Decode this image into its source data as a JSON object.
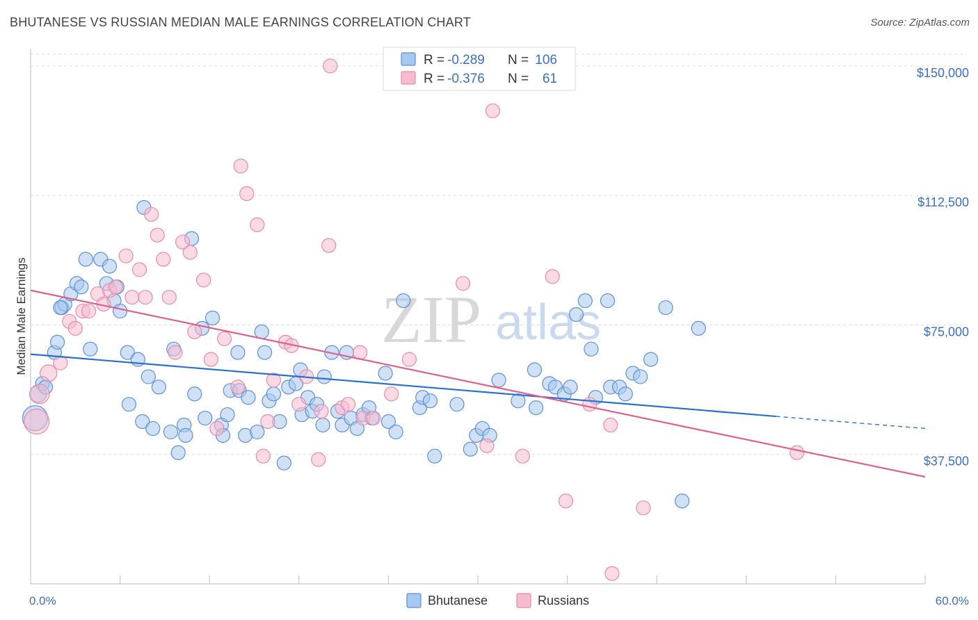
{
  "header": {
    "title": "BHUTANESE VS RUSSIAN MEDIAN MALE EARNINGS CORRELATION CHART",
    "source": "Source: ZipAtlas.com"
  },
  "watermark": {
    "zip": "ZIP",
    "atlas": "atlas"
  },
  "colors": {
    "bhutanese_fill": "#a9c8ef",
    "bhutanese_stroke": "#5b8fd6",
    "bhutanese_line": "#2a6fd0",
    "russians_fill": "#f6bccd",
    "russians_stroke": "#e68aa8",
    "russians_line": "#e0608c",
    "axis_label": "#3a6fc4",
    "grid": "#dddddd"
  },
  "legend": {
    "rows": [
      {
        "r_label": "R =",
        "r_value": "-0.289",
        "n_label": "N =",
        "n_value": "106"
      },
      {
        "r_label": "R =",
        "r_value": "-0.376",
        "n_label": "N =",
        "n_value": "61"
      }
    ],
    "bottom": [
      "Bhutanese",
      "Russians"
    ]
  },
  "chart_data": {
    "type": "scatter",
    "title": "BHUTANESE VS RUSSIAN MEDIAN MALE EARNINGS CORRELATION CHART",
    "xlabel": "",
    "ylabel": "Median Male Earnings",
    "xlim": [
      0,
      60
    ],
    "ylim": [
      0,
      155000
    ],
    "x_tick_labels": [
      "0.0%",
      "60.0%"
    ],
    "y_ticks": [
      {
        "value": 37500,
        "label": "$37,500"
      },
      {
        "value": 75000,
        "label": "$75,000"
      },
      {
        "value": 112500,
        "label": "$112,500"
      },
      {
        "value": 150000,
        "label": "$150,000"
      }
    ],
    "grid": true,
    "legend_position": "top-center",
    "series": [
      {
        "name": "Bhutanese",
        "r": -0.289,
        "n": 106,
        "trend": {
          "x": [
            0,
            50
          ],
          "y": [
            66500,
            48500
          ],
          "dashed_to": [
            60,
            45000
          ]
        },
        "points": [
          [
            0.3,
            48000,
            18
          ],
          [
            0.5,
            55000,
            12
          ],
          [
            0.8,
            58000,
            10
          ],
          [
            1.0,
            57000,
            10
          ],
          [
            1.6,
            67000,
            10
          ],
          [
            1.8,
            70000,
            10
          ],
          [
            2.1,
            80000,
            10
          ],
          [
            2.3,
            81000,
            10
          ],
          [
            2.7,
            84000,
            10
          ],
          [
            3.1,
            87000,
            10
          ],
          [
            3.4,
            86000,
            10
          ],
          [
            3.7,
            94000,
            10
          ],
          [
            4.0,
            68000,
            10
          ],
          [
            4.7,
            94000,
            10
          ],
          [
            5.1,
            87000,
            10
          ],
          [
            5.3,
            92000,
            10
          ],
          [
            5.6,
            82000,
            10
          ],
          [
            5.8,
            86000,
            10
          ],
          [
            6.0,
            79000,
            10
          ],
          [
            6.5,
            67000,
            10
          ],
          [
            6.6,
            52000,
            10
          ],
          [
            7.2,
            65000,
            10
          ],
          [
            7.5,
            47000,
            10
          ],
          [
            7.6,
            109000,
            10
          ],
          [
            7.9,
            60000,
            10
          ],
          [
            8.2,
            45000,
            10
          ],
          [
            8.6,
            57000,
            10
          ],
          [
            9.4,
            44000,
            10
          ],
          [
            9.6,
            68000,
            10
          ],
          [
            9.9,
            38000,
            10
          ],
          [
            10.3,
            46000,
            10
          ],
          [
            10.4,
            43000,
            10
          ],
          [
            10.8,
            100000,
            10
          ],
          [
            11.0,
            55000,
            10
          ],
          [
            11.5,
            74000,
            10
          ],
          [
            11.7,
            48000,
            10
          ],
          [
            12.2,
            77000,
            10
          ],
          [
            12.8,
            46000,
            10
          ],
          [
            12.9,
            43000,
            10
          ],
          [
            13.2,
            49000,
            10
          ],
          [
            13.4,
            56000,
            10
          ],
          [
            13.9,
            67000,
            10
          ],
          [
            14.0,
            56000,
            10
          ],
          [
            14.4,
            43000,
            10
          ],
          [
            14.6,
            54000,
            10
          ],
          [
            15.2,
            44000,
            10
          ],
          [
            15.5,
            73000,
            10
          ],
          [
            15.7,
            67000,
            10
          ],
          [
            16.0,
            53000,
            10
          ],
          [
            16.3,
            55000,
            10
          ],
          [
            16.7,
            47000,
            10
          ],
          [
            17.0,
            35000,
            10
          ],
          [
            17.3,
            57000,
            10
          ],
          [
            17.8,
            58000,
            10
          ],
          [
            18.1,
            62000,
            10
          ],
          [
            18.2,
            49000,
            10
          ],
          [
            18.6,
            54000,
            10
          ],
          [
            18.9,
            50000,
            10
          ],
          [
            19.2,
            52000,
            10
          ],
          [
            19.6,
            46000,
            10
          ],
          [
            19.7,
            60000,
            10
          ],
          [
            20.2,
            67000,
            10
          ],
          [
            20.6,
            50000,
            10
          ],
          [
            20.9,
            46000,
            10
          ],
          [
            21.2,
            67000,
            10
          ],
          [
            21.5,
            48000,
            10
          ],
          [
            21.9,
            45000,
            10
          ],
          [
            22.3,
            49000,
            10
          ],
          [
            22.9,
            48000,
            10
          ],
          [
            22.7,
            51000,
            10
          ],
          [
            23.8,
            61000,
            10
          ],
          [
            24.0,
            47000,
            10
          ],
          [
            25.0,
            82000,
            10
          ],
          [
            26.1,
            51000,
            10
          ],
          [
            26.3,
            54000,
            10
          ],
          [
            26.8,
            53000,
            10
          ],
          [
            27.1,
            37000,
            10
          ],
          [
            28.6,
            52000,
            10
          ],
          [
            29.5,
            39000,
            10
          ],
          [
            29.9,
            43000,
            10
          ],
          [
            30.3,
            45000,
            10
          ],
          [
            30.8,
            43000,
            10
          ],
          [
            31.4,
            59000,
            10
          ],
          [
            32.7,
            53000,
            10
          ],
          [
            33.8,
            62000,
            10
          ],
          [
            33.9,
            51000,
            10
          ],
          [
            34.8,
            58000,
            10
          ],
          [
            35.2,
            57000,
            10
          ],
          [
            35.8,
            55000,
            10
          ],
          [
            36.2,
            57000,
            10
          ],
          [
            36.6,
            78000,
            10
          ],
          [
            37.2,
            82000,
            10
          ],
          [
            37.6,
            68000,
            10
          ],
          [
            37.9,
            54000,
            10
          ],
          [
            38.9,
            57000,
            10
          ],
          [
            39.5,
            57000,
            10
          ],
          [
            39.9,
            55000,
            10
          ],
          [
            40.4,
            61000,
            10
          ],
          [
            40.9,
            60000,
            10
          ],
          [
            41.6,
            65000,
            10
          ],
          [
            42.6,
            80000,
            10
          ],
          [
            43.7,
            24000,
            10
          ],
          [
            44.8,
            74000,
            10
          ],
          [
            38.7,
            82000,
            10
          ],
          [
            2.0,
            80000,
            10
          ],
          [
            24.5,
            44000,
            10
          ]
        ]
      },
      {
        "name": "Russians",
        "r": -0.376,
        "n": 61,
        "trend": {
          "x": [
            0,
            60
          ],
          "y": [
            85000,
            31000
          ]
        },
        "points": [
          [
            0.4,
            47000,
            18
          ],
          [
            0.6,
            55000,
            14
          ],
          [
            1.2,
            61000,
            12
          ],
          [
            2.0,
            64000,
            10
          ],
          [
            2.6,
            76000,
            10
          ],
          [
            3.0,
            74000,
            10
          ],
          [
            3.5,
            79000,
            10
          ],
          [
            3.9,
            79000,
            10
          ],
          [
            4.5,
            84000,
            10
          ],
          [
            4.9,
            81000,
            10
          ],
          [
            5.3,
            85000,
            10
          ],
          [
            5.7,
            86000,
            10
          ],
          [
            6.4,
            95000,
            10
          ],
          [
            6.8,
            83000,
            10
          ],
          [
            7.3,
            91000,
            10
          ],
          [
            7.7,
            83000,
            10
          ],
          [
            8.1,
            107000,
            10
          ],
          [
            8.5,
            101000,
            10
          ],
          [
            8.9,
            94000,
            10
          ],
          [
            9.3,
            83000,
            10
          ],
          [
            9.7,
            67000,
            10
          ],
          [
            10.2,
            99000,
            10
          ],
          [
            10.7,
            96000,
            10
          ],
          [
            11.0,
            73000,
            10
          ],
          [
            11.6,
            88000,
            10
          ],
          [
            12.1,
            65000,
            10
          ],
          [
            12.5,
            45000,
            10
          ],
          [
            13.0,
            71000,
            10
          ],
          [
            13.9,
            57000,
            10
          ],
          [
            14.1,
            121000,
            10
          ],
          [
            14.5,
            113000,
            10
          ],
          [
            15.2,
            104000,
            10
          ],
          [
            15.6,
            37000,
            10
          ],
          [
            15.9,
            47000,
            10
          ],
          [
            16.3,
            59000,
            10
          ],
          [
            17.1,
            70000,
            10
          ],
          [
            17.5,
            69000,
            10
          ],
          [
            18.0,
            52000,
            10
          ],
          [
            18.5,
            60000,
            10
          ],
          [
            19.3,
            36000,
            10
          ],
          [
            19.5,
            50000,
            10
          ],
          [
            20.0,
            98000,
            10
          ],
          [
            20.1,
            150000,
            10
          ],
          [
            20.9,
            51000,
            10
          ],
          [
            21.3,
            52000,
            10
          ],
          [
            22.1,
            67000,
            10
          ],
          [
            22.3,
            48000,
            10
          ],
          [
            23.0,
            48000,
            10
          ],
          [
            24.2,
            55000,
            10
          ],
          [
            25.4,
            65000,
            10
          ],
          [
            29.0,
            87000,
            10
          ],
          [
            31.0,
            137000,
            10
          ],
          [
            33.0,
            37000,
            10
          ],
          [
            35.0,
            89000,
            10
          ],
          [
            35.9,
            24000,
            10
          ],
          [
            38.9,
            46000,
            10
          ],
          [
            39.0,
            3000,
            10
          ],
          [
            41.1,
            22000,
            10
          ],
          [
            51.4,
            38000,
            10
          ],
          [
            30.6,
            40000,
            10
          ],
          [
            37.5,
            52000,
            10
          ]
        ]
      }
    ]
  }
}
